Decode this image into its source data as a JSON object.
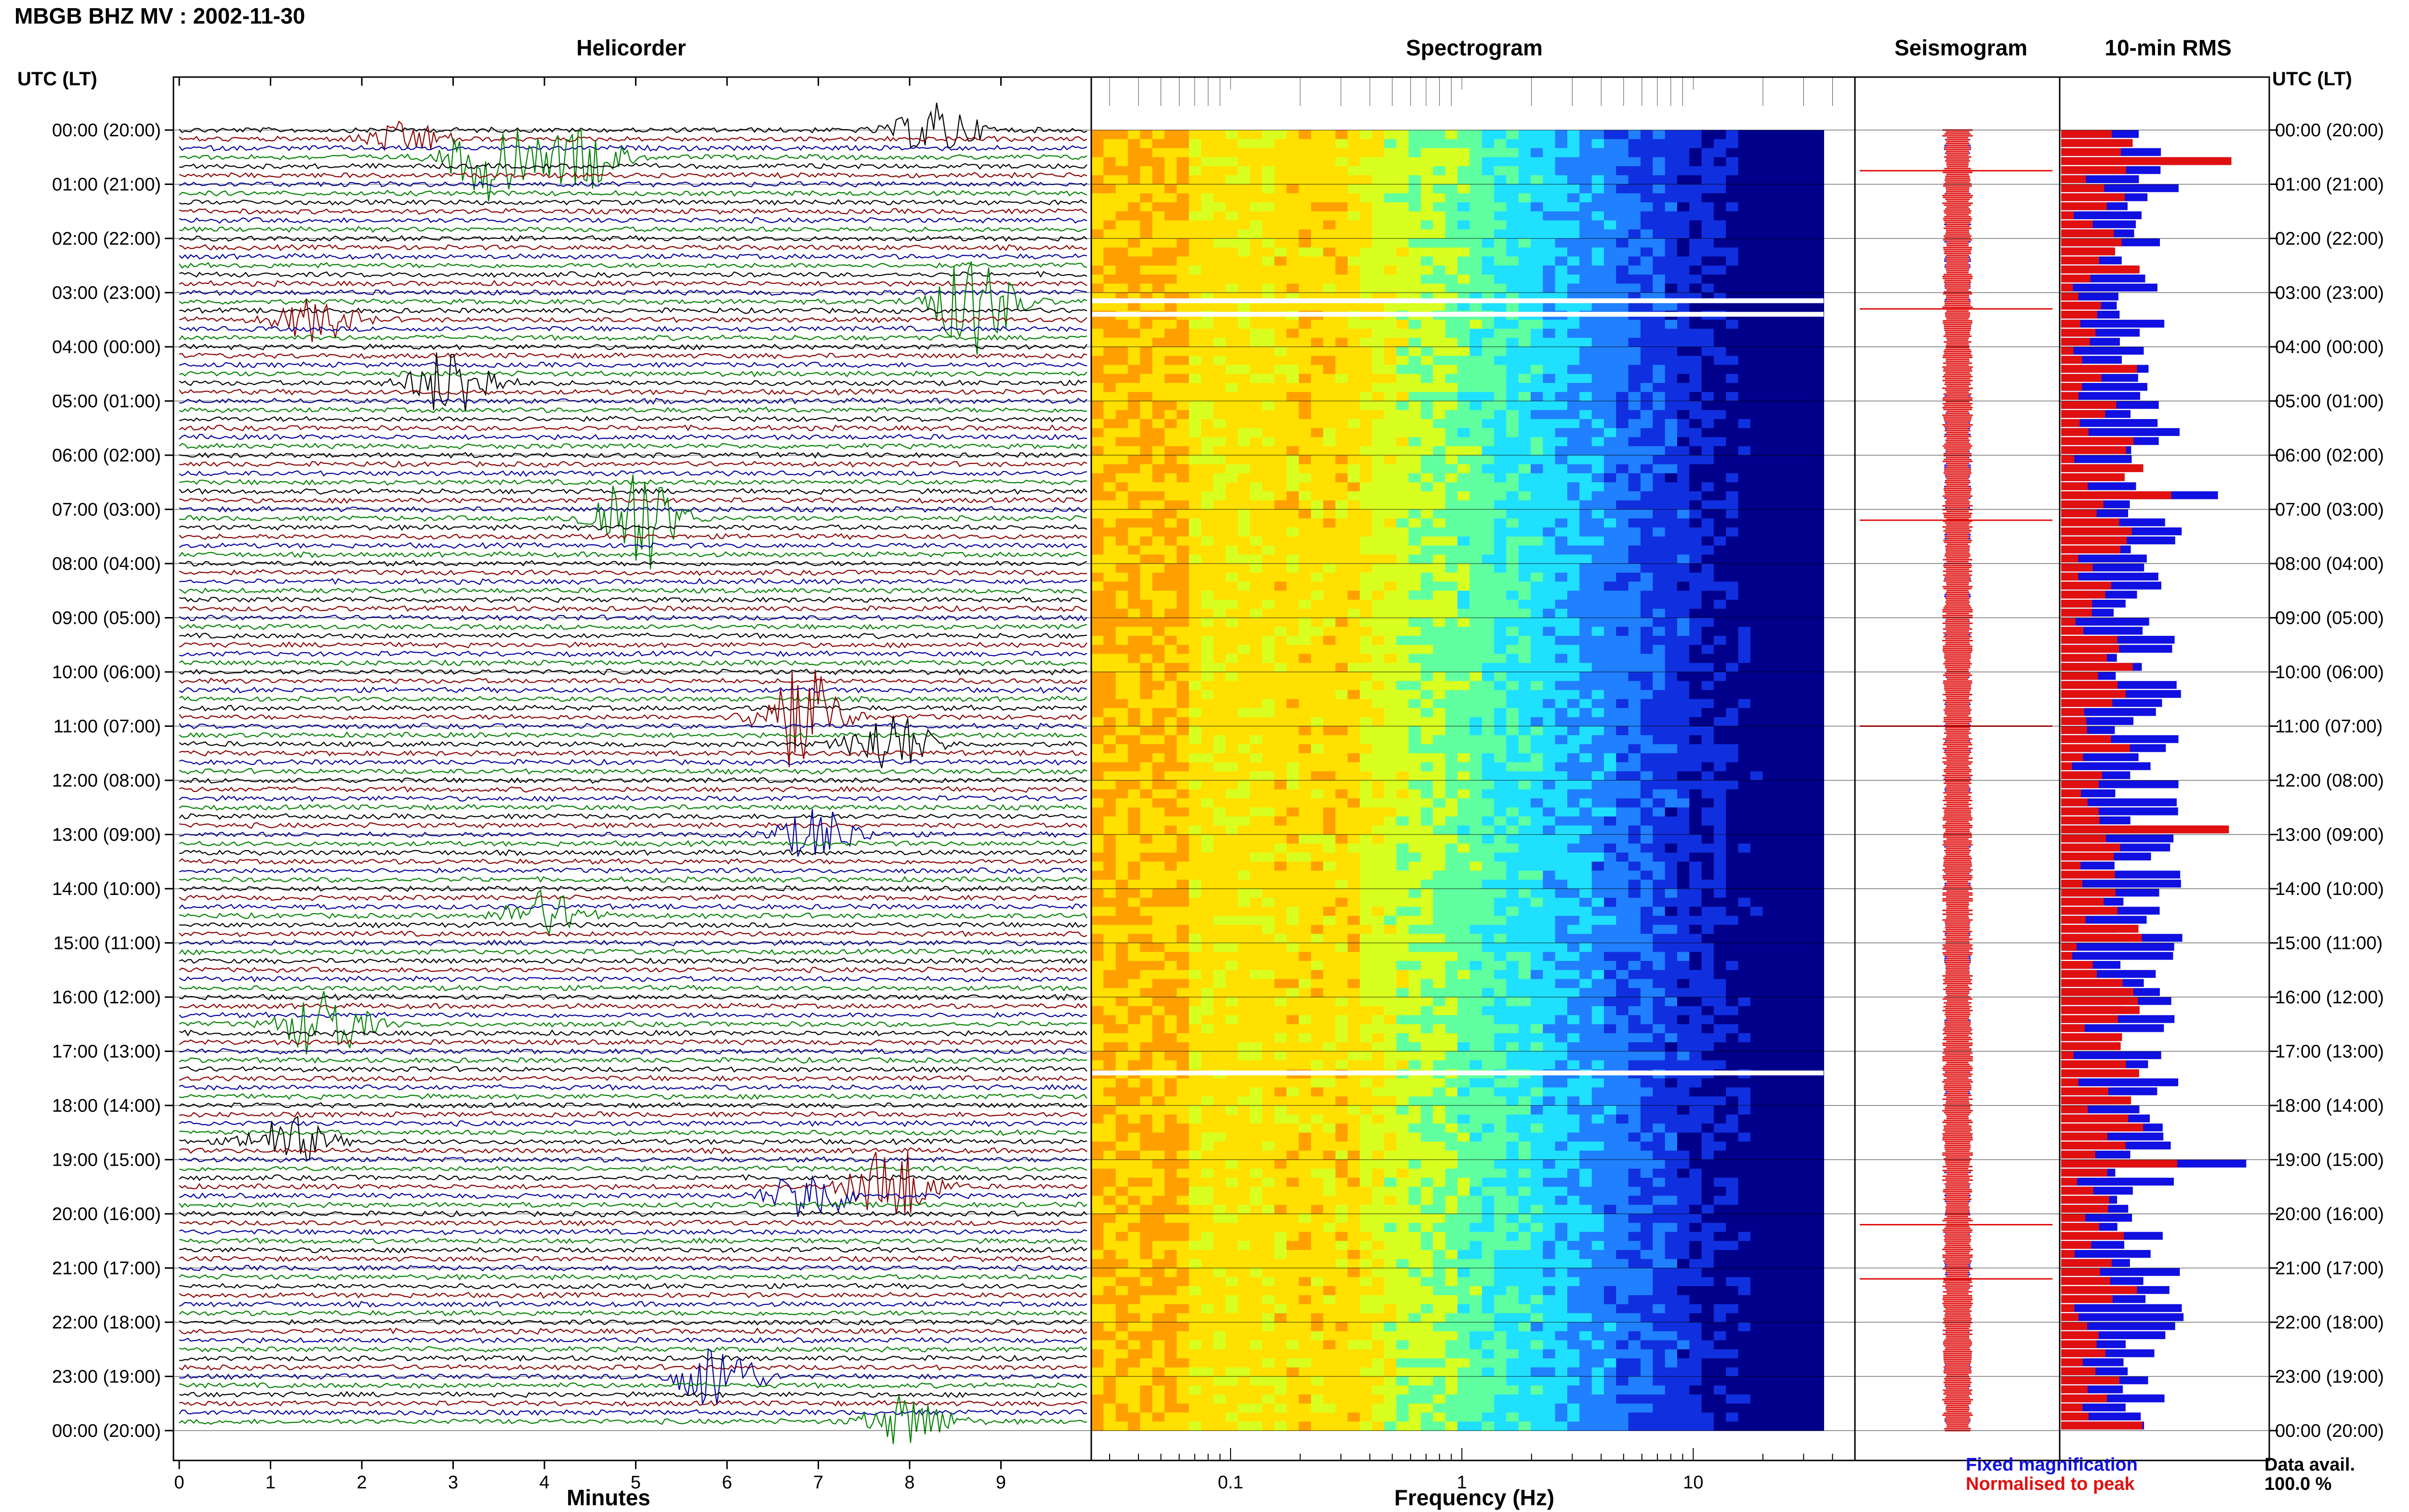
{
  "title": "MBGB BHZ MV : 2002-11-30",
  "panels": {
    "helicorder": "Helicorder",
    "spectrogram": "Spectrogram",
    "seismogram": "Seismogram",
    "rms": "10-min RMS"
  },
  "header_left": "UTC (LT)",
  "header_right": "UTC (LT)",
  "time_labels": [
    "00:00 (20:00)",
    "01:00 (21:00)",
    "02:00 (22:00)",
    "03:00 (23:00)",
    "04:00 (00:00)",
    "05:00 (01:00)",
    "06:00 (02:00)",
    "07:00 (03:00)",
    "08:00 (04:00)",
    "09:00 (05:00)",
    "10:00 (06:00)",
    "11:00 (07:00)",
    "12:00 (08:00)",
    "13:00 (09:00)",
    "14:00 (10:00)",
    "15:00 (11:00)",
    "16:00 (12:00)",
    "17:00 (13:00)",
    "18:00 (14:00)",
    "19:00 (15:00)",
    "20:00 (16:00)",
    "21:00 (17:00)",
    "22:00 (18:00)",
    "23:00 (19:00)",
    "00:00 (20:00)"
  ],
  "legend": {
    "fixed": "Fixed magnification",
    "normalised": "Normalised to peak",
    "fixed_color": "#1010e0",
    "normalised_color": "#e01010"
  },
  "availability": {
    "label": "Data avail.",
    "value": "100.0 %"
  },
  "chart_data": [
    {
      "type": "line",
      "name": "helicorder",
      "title": "Helicorder",
      "xlabel": "Minutes",
      "xlim": [
        0,
        10
      ],
      "x_ticks": [
        "0",
        "1",
        "2",
        "3",
        "4",
        "5",
        "6",
        "7",
        "8",
        "9"
      ],
      "traces_per_hour": 6,
      "hours": 24,
      "trace_colors": [
        "#000000",
        "#8b0000",
        "#0000a0",
        "#008000"
      ],
      "events": [
        {
          "row": 0,
          "minute": 8.3,
          "amp": 1.0
        },
        {
          "row": 1,
          "minute": 2.5,
          "amp": 0.6
        },
        {
          "row": 3,
          "minute": 3.4,
          "amp": 1.6
        },
        {
          "row": 3,
          "minute": 4.4,
          "amp": 1.2
        },
        {
          "row": 19,
          "minute": 8.7,
          "amp": 2.0
        },
        {
          "row": 21,
          "minute": 1.5,
          "amp": 0.8
        },
        {
          "row": 28,
          "minute": 3.0,
          "amp": 1.4
        },
        {
          "row": 43,
          "minute": 5.0,
          "amp": 2.2
        },
        {
          "row": 65,
          "minute": 6.8,
          "amp": 2.0
        },
        {
          "row": 68,
          "minute": 7.8,
          "amp": 1.2
        },
        {
          "row": 78,
          "minute": 7.0,
          "amp": 1.0
        },
        {
          "row": 87,
          "minute": 4.0,
          "amp": 0.9
        },
        {
          "row": 99,
          "minute": 1.6,
          "amp": 1.4
        },
        {
          "row": 117,
          "minute": 7.8,
          "amp": 1.6
        },
        {
          "row": 118,
          "minute": 6.9,
          "amp": 1.0
        },
        {
          "row": 138,
          "minute": 5.9,
          "amp": 1.3
        },
        {
          "row": 143,
          "minute": 8.0,
          "amp": 1.0
        },
        {
          "row": 112,
          "minute": 1.2,
          "amp": 0.9
        }
      ]
    },
    {
      "type": "heatmap",
      "name": "spectrogram",
      "title": "Spectrogram",
      "xlabel": "Frequency (Hz)",
      "x_scale": "log",
      "xlim": [
        0.025,
        50
      ],
      "x_ticks": [
        "0.1",
        "1",
        "10"
      ],
      "colormap": [
        "#ffa000",
        "#ffe000",
        "#d8ff20",
        "#60ffa0",
        "#20e0ff",
        "#2080ff",
        "#1030e0",
        "#00008a"
      ],
      "peak_band_hz": [
        0.15,
        0.35
      ],
      "gaps_hours": [
        3.15,
        3.4,
        17.4
      ]
    },
    {
      "type": "line",
      "name": "seismogram",
      "title": "Seismogram",
      "series": [
        {
          "name": "Fixed magnification",
          "color": "#1010e0"
        },
        {
          "name": "Normalised to peak",
          "color": "#e01010"
        }
      ]
    },
    {
      "type": "bar",
      "name": "10-min RMS",
      "title": "10-min RMS",
      "orientation": "horizontal",
      "bins": 144,
      "series": [
        {
          "name": "Fixed magnification",
          "color": "#1010e0"
        },
        {
          "name": "Normalised to peak",
          "color": "#e01010"
        }
      ],
      "blue_range": [
        0.25,
        1.0
      ],
      "red_range": [
        0.05,
        0.5
      ]
    }
  ]
}
